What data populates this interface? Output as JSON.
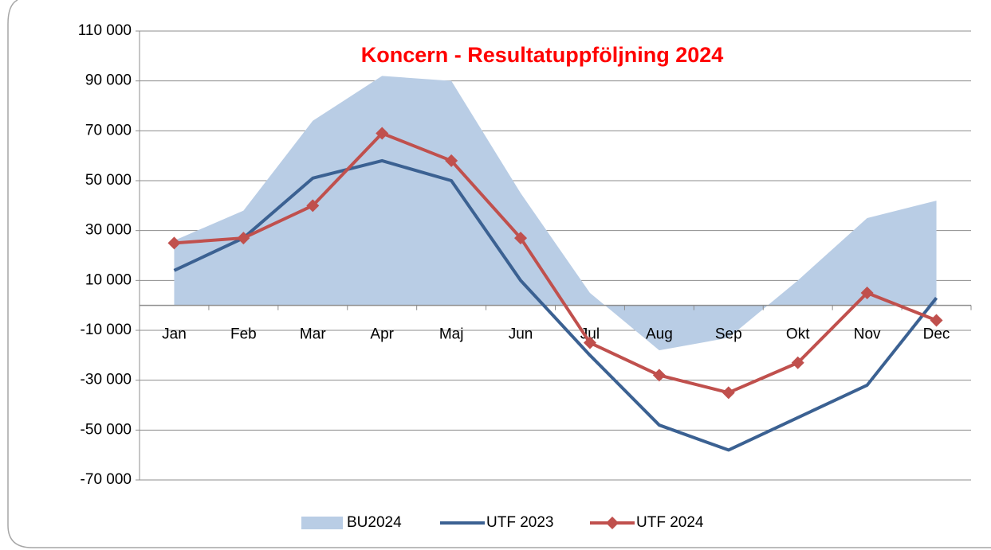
{
  "chart_data": {
    "type": "line",
    "title": "Koncern - Resultatuppföljning  2024",
    "categories": [
      "Jan",
      "Feb",
      "Mar",
      "Apr",
      "Maj",
      "Jun",
      "Jul",
      "Aug",
      "Sep",
      "Okt",
      "Nov",
      "Dec"
    ],
    "series": [
      {
        "name": "BU2024",
        "type": "area",
        "color": "#b9cde5",
        "values": [
          26000,
          38000,
          74000,
          92000,
          90000,
          45000,
          5000,
          -18000,
          -13000,
          10000,
          35000,
          42000
        ]
      },
      {
        "name": "UTF 2023",
        "type": "line",
        "color": "#3b6192",
        "values": [
          14000,
          27000,
          51000,
          58000,
          50000,
          10000,
          -20000,
          -48000,
          -58000,
          -45000,
          -32000,
          3000
        ]
      },
      {
        "name": "UTF 2024",
        "type": "line",
        "marker": "diamond",
        "color": "#c0504d",
        "values": [
          25000,
          27000,
          40000,
          69000,
          58000,
          27000,
          -15000,
          -28000,
          -35000,
          -23000,
          5000,
          -6000
        ]
      }
    ],
    "ylim": [
      -70000,
      110000
    ],
    "yticks": [
      {
        "value": -70000,
        "label": "-70 000"
      },
      {
        "value": -50000,
        "label": "-50 000"
      },
      {
        "value": -30000,
        "label": "-30 000"
      },
      {
        "value": -10000,
        "label": "-10 000"
      },
      {
        "value": 10000,
        "label": "10 000"
      },
      {
        "value": 30000,
        "label": "30 000"
      },
      {
        "value": 50000,
        "label": "50 000"
      },
      {
        "value": 70000,
        "label": "70 000"
      },
      {
        "value": 90000,
        "label": "90 000"
      },
      {
        "value": 110000,
        "label": "110 000"
      }
    ],
    "grid": true,
    "legend": "bottom"
  }
}
